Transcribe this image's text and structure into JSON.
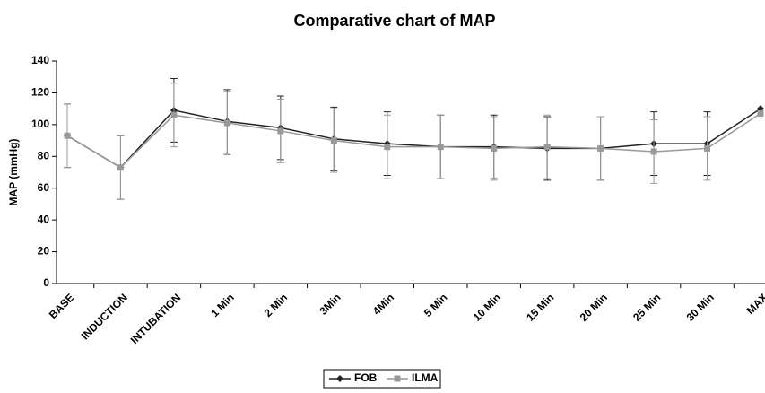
{
  "chart_data": {
    "type": "line",
    "title": "Comparative chart of MAP",
    "y_label": "MAP (mmHg)",
    "categories": [
      "BASE",
      "INDUCTION",
      "INTUBATION",
      "1 Min",
      "2 Min",
      "3Min",
      "4Min",
      "5 Min",
      "10 Min",
      "15 Min",
      "20 Min",
      "25 Min",
      "30 Min",
      "MAX"
    ],
    "series": [
      {
        "name": "FOB",
        "color": "#222222",
        "marker": "diamond",
        "values": [
          93,
          73,
          109,
          102,
          98,
          91,
          88,
          86,
          86,
          85,
          85,
          88,
          88,
          110
        ],
        "errors": [
          20,
          20,
          20,
          20,
          20,
          20,
          20,
          20,
          20,
          20,
          20,
          20,
          20,
          null
        ]
      },
      {
        "name": "ILMA",
        "color": "#999999",
        "marker": "square",
        "values": [
          93,
          73,
          106,
          101,
          96,
          90,
          86,
          86,
          85,
          86,
          85,
          83,
          85,
          107
        ],
        "errors": [
          20,
          20,
          20,
          20,
          20,
          20,
          20,
          20,
          20,
          20,
          20,
          20,
          20,
          null
        ]
      }
    ],
    "ylim": [
      0,
      140
    ],
    "yticks": [
      0,
      20,
      40,
      60,
      80,
      100,
      120,
      140
    ],
    "legend": "bottom"
  }
}
